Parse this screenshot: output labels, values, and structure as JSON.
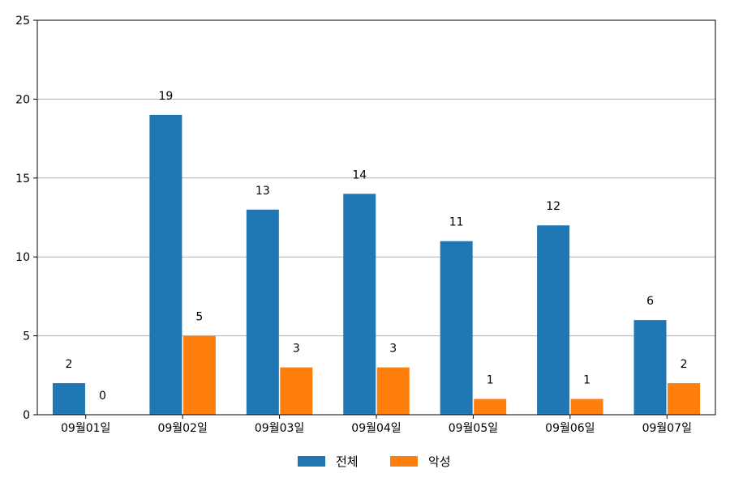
{
  "chart_data": {
    "type": "bar",
    "categories": [
      "09월01일",
      "09월02일",
      "09월03일",
      "09월04일",
      "09월05일",
      "09월06일",
      "09월07일"
    ],
    "series": [
      {
        "name": "전체",
        "values": [
          2,
          19,
          13,
          14,
          11,
          12,
          6
        ],
        "color": "#1f77b4"
      },
      {
        "name": "악성",
        "values": [
          0,
          5,
          3,
          3,
          1,
          1,
          2
        ],
        "color": "#ff7f0e"
      }
    ],
    "ylim": [
      0,
      25
    ],
    "yticks": [
      0,
      5,
      10,
      15,
      20,
      25
    ],
    "grid": "horizontal",
    "legend_position": "bottom-center",
    "data_labels": true
  }
}
